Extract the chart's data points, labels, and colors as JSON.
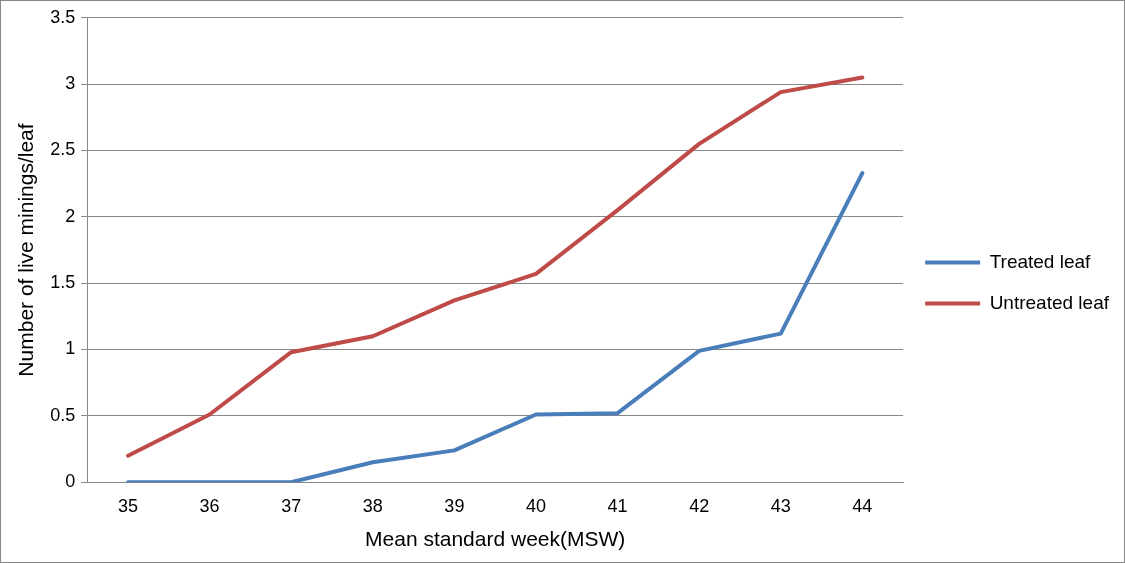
{
  "chart_data": {
    "type": "line",
    "xlabel": "Mean standard week(MSW)",
    "ylabel": "Number of live minings/leaf",
    "categories": [
      "35",
      "36",
      "37",
      "38",
      "39",
      "40",
      "41",
      "42",
      "43",
      "44"
    ],
    "series": [
      {
        "name": "Treated leaf",
        "color": "#4a7ebb",
        "values": [
          0,
          0,
          0,
          0.15,
          0.24,
          0.51,
          0.52,
          0.99,
          1.12,
          2.33
        ]
      },
      {
        "name": "Untreated leaf",
        "color": "#be4b48",
        "values": [
          0.2,
          0.51,
          0.98,
          1.1,
          1.37,
          1.57,
          2.05,
          2.55,
          2.94,
          3.05
        ]
      }
    ],
    "ylim": [
      0,
      3.5
    ],
    "yticks": [
      0,
      0.5,
      1,
      1.5,
      2,
      2.5,
      3,
      3.5
    ],
    "grid": "y",
    "legend": "right",
    "marker": "none",
    "line_style": "solid"
  }
}
